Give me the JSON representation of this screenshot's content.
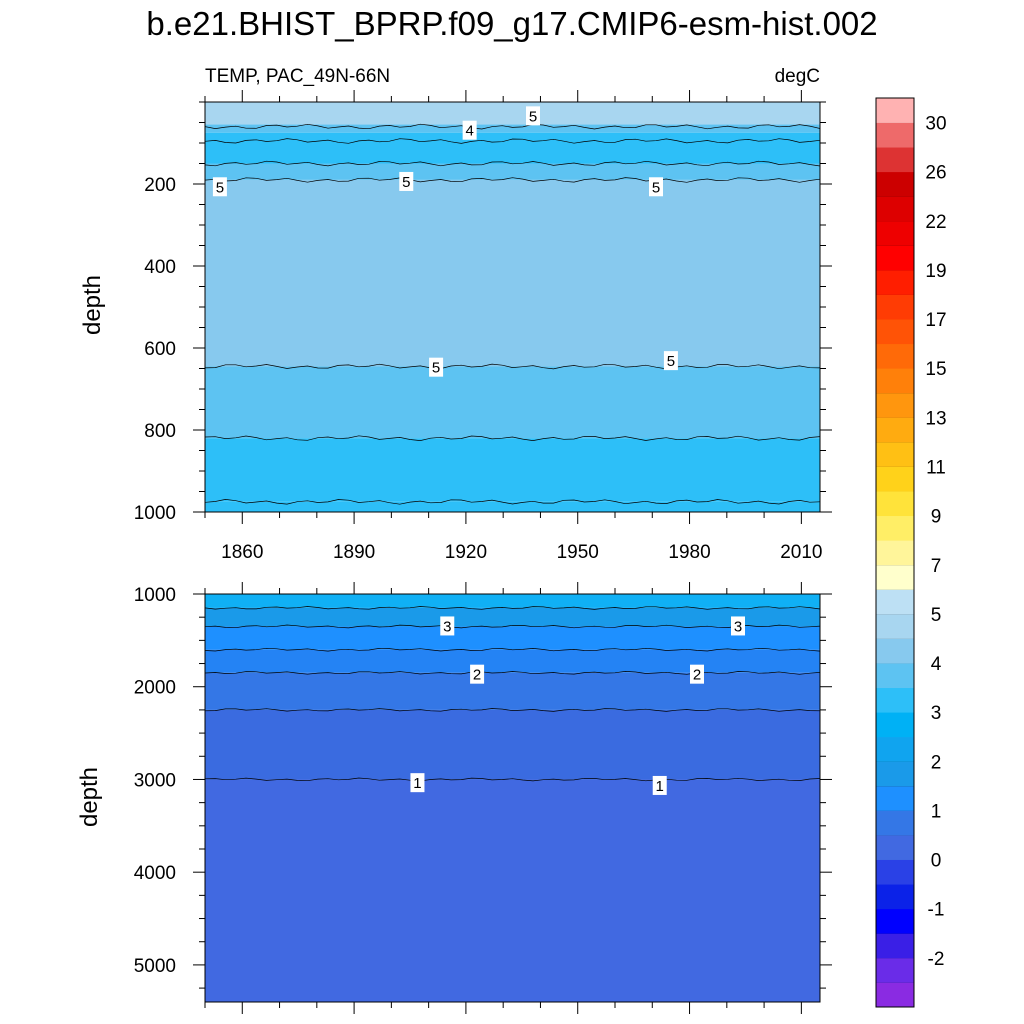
{
  "chart_data": {
    "type": "contour",
    "title": "b.e21.BHIST_BPRP.f09_g17.CMIP6-esm-hist.002",
    "left_string": "TEMP, PAC_49N-66N",
    "right_string": "degC",
    "xlim": [
      1850,
      2015
    ],
    "x_ticks": [
      1860,
      1890,
      1920,
      1950,
      1980,
      2010
    ],
    "top_panel": {
      "ylabel": "depth",
      "ylim": [
        0,
        1000
      ],
      "y_ticks": [
        200,
        400,
        600,
        800,
        1000
      ],
      "bands": [
        {
          "from": 0,
          "to": 55,
          "value": 5.5
        },
        {
          "from": 55,
          "to": 75,
          "value": 4.8
        },
        {
          "from": 75,
          "to": 150,
          "value": 4.2
        },
        {
          "from": 150,
          "to": 190,
          "value": 4.8
        },
        {
          "from": 190,
          "to": 645,
          "value": 5.2
        },
        {
          "from": 645,
          "to": 820,
          "value": 4.8
        },
        {
          "from": 820,
          "to": 975,
          "value": 4.3
        },
        {
          "from": 975,
          "to": 1000,
          "value": 4.1
        }
      ],
      "contour_lines": [
        60,
        95,
        150,
        190,
        645,
        820,
        975
      ],
      "contour_labels": [
        {
          "x": 1854,
          "depth": 208,
          "text": "5"
        },
        {
          "x": 1904,
          "depth": 195,
          "text": "5"
        },
        {
          "x": 1971,
          "depth": 208,
          "text": "5"
        },
        {
          "x": 1921,
          "depth": 70,
          "text": "4"
        },
        {
          "x": 1938,
          "depth": 35,
          "text": "5"
        },
        {
          "x": 1912,
          "depth": 648,
          "text": "5"
        },
        {
          "x": 1975,
          "depth": 632,
          "text": "5"
        }
      ]
    },
    "bottom_panel": {
      "ylabel": "depth",
      "ylim": [
        1000,
        5400
      ],
      "y_ticks": [
        1000,
        2000,
        3000,
        4000,
        5000
      ],
      "bands": [
        {
          "from": 1000,
          "to": 1150,
          "value": 3.8
        },
        {
          "from": 1150,
          "to": 1350,
          "value": 3.3
        },
        {
          "from": 1350,
          "to": 1600,
          "value": 2.8
        },
        {
          "from": 1600,
          "to": 1850,
          "value": 2.3
        },
        {
          "from": 1850,
          "to": 2250,
          "value": 1.8
        },
        {
          "from": 2250,
          "to": 3000,
          "value": 1.3
        },
        {
          "from": 3000,
          "to": 5400,
          "value": 0.8
        }
      ],
      "contour_lines": [
        1150,
        1350,
        1600,
        1850,
        2250,
        3000
      ],
      "contour_labels": [
        {
          "x": 1915,
          "depth": 1350,
          "text": "3"
        },
        {
          "x": 1993,
          "depth": 1350,
          "text": "3"
        },
        {
          "x": 1923,
          "depth": 1870,
          "text": "2"
        },
        {
          "x": 1982,
          "depth": 1870,
          "text": "2"
        },
        {
          "x": 1907,
          "depth": 3040,
          "text": "1"
        },
        {
          "x": 1972,
          "depth": 3070,
          "text": "1"
        }
      ]
    },
    "colorbar": {
      "labels": [
        "-2",
        "-1",
        "0",
        "1",
        "2",
        "3",
        "4",
        "5",
        "7",
        "9",
        "11",
        "13",
        "15",
        "17",
        "19",
        "22",
        "26",
        "30"
      ],
      "colors": [
        "#8a2be2",
        "#6a2ce8",
        "#3a1fe6",
        "#0000ff",
        "#0b22e8",
        "#2a41e6",
        "#4169e1",
        "#3477e6",
        "#1e90ff",
        "#1a9ae9",
        "#10a4ef",
        "#00b1f5",
        "#2dbff8",
        "#5dc3f2",
        "#87c9ee",
        "#a8d6f0",
        "#bde0f4",
        "#ffffcc",
        "#fff59a",
        "#ffee66",
        "#ffe33a",
        "#ffd21a",
        "#ffc014",
        "#ffab10",
        "#ff960e",
        "#ff800a",
        "#ff6a08",
        "#ff5306",
        "#ff3c04",
        "#ff1e00",
        "#ff0000",
        "#ee0000",
        "#dd0000",
        "#cc0000",
        "#dd3333",
        "#ee6a6a",
        "#ffb2b2"
      ]
    }
  }
}
